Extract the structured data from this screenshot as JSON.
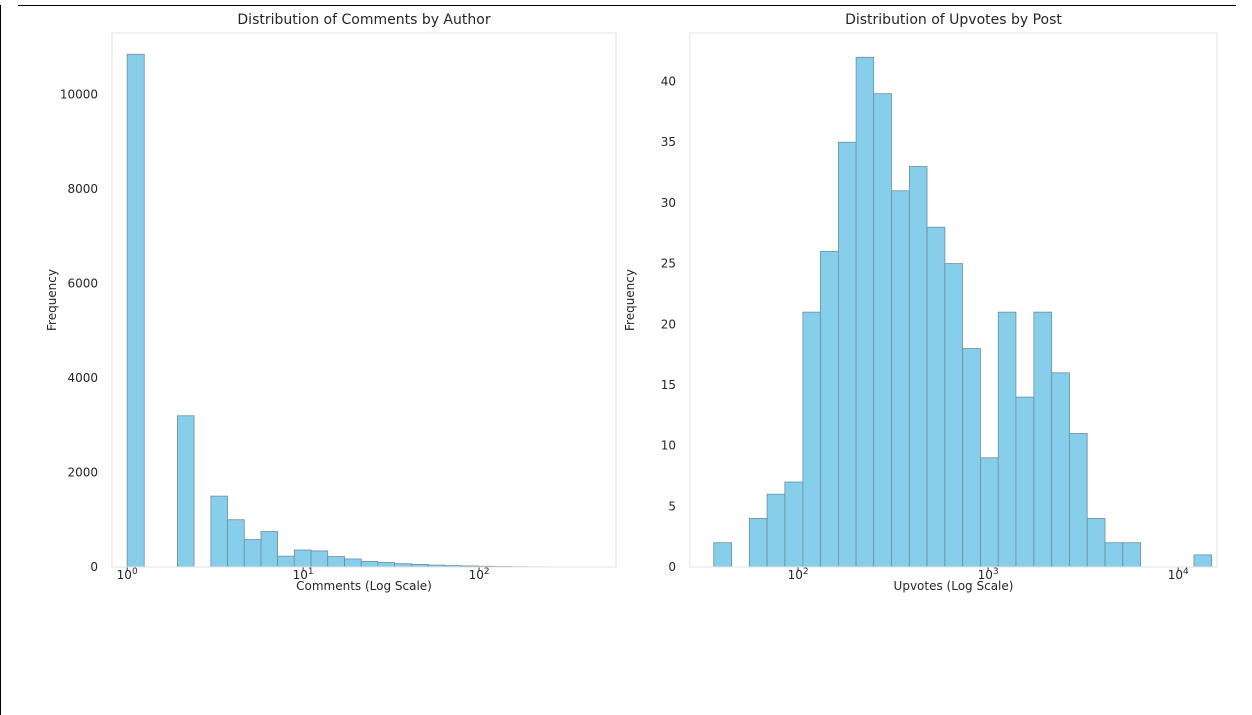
{
  "chart_data": [
    {
      "type": "bar",
      "title": "Distribution of Comments by Author",
      "xlabel": "Comments (Log Scale)",
      "ylabel": "Frequency",
      "xscale": "log",
      "xlim": [
        0.82,
        600
      ],
      "ylim": [
        0,
        11300
      ],
      "yticks": [
        0,
        2000,
        4000,
        6000,
        8000,
        10000
      ],
      "xticks": [
        {
          "value": 1,
          "base": "10",
          "exp": "0"
        },
        {
          "value": 10,
          "base": "10",
          "exp": "1"
        },
        {
          "value": 100,
          "base": "10",
          "exp": "2"
        }
      ],
      "grid": false,
      "bins": [
        {
          "x0": 1.0,
          "x1": 1.25,
          "value": 10850
        },
        {
          "x0": 1.25,
          "x1": 1.55,
          "value": 0
        },
        {
          "x0": 1.55,
          "x1": 1.93,
          "value": 0
        },
        {
          "x0": 1.93,
          "x1": 2.4,
          "value": 3200
        },
        {
          "x0": 2.4,
          "x1": 2.99,
          "value": 0
        },
        {
          "x0": 2.99,
          "x1": 3.72,
          "value": 1500
        },
        {
          "x0": 3.72,
          "x1": 4.63,
          "value": 1000
        },
        {
          "x0": 4.63,
          "x1": 5.76,
          "value": 580
        },
        {
          "x0": 5.76,
          "x1": 7.16,
          "value": 750
        },
        {
          "x0": 7.16,
          "x1": 8.91,
          "value": 230
        },
        {
          "x0": 8.91,
          "x1": 11.1,
          "value": 360
        },
        {
          "x0": 11.1,
          "x1": 13.8,
          "value": 340
        },
        {
          "x0": 13.8,
          "x1": 17.2,
          "value": 220
        },
        {
          "x0": 17.2,
          "x1": 21.4,
          "value": 170
        },
        {
          "x0": 21.4,
          "x1": 26.6,
          "value": 120
        },
        {
          "x0": 26.6,
          "x1": 33.1,
          "value": 95
        },
        {
          "x0": 33.1,
          "x1": 41.2,
          "value": 70
        },
        {
          "x0": 41.2,
          "x1": 51.3,
          "value": 55
        },
        {
          "x0": 51.3,
          "x1": 63.8,
          "value": 40
        },
        {
          "x0": 63.8,
          "x1": 79.4,
          "value": 30
        },
        {
          "x0": 79.4,
          "x1": 98.8,
          "value": 22
        },
        {
          "x0": 98.8,
          "x1": 123,
          "value": 15
        },
        {
          "x0": 123,
          "x1": 153,
          "value": 10
        },
        {
          "x0": 153,
          "x1": 190,
          "value": 6
        },
        {
          "x0": 190,
          "x1": 237,
          "value": 4
        },
        {
          "x0": 237,
          "x1": 294,
          "value": 2
        },
        {
          "x0": 294,
          "x1": 366,
          "value": 1
        },
        {
          "x0": 366,
          "x1": 456,
          "value": 1
        },
        {
          "x0": 456,
          "x1": 567,
          "value": 1
        }
      ]
    },
    {
      "type": "bar",
      "title": "Distribution of Upvotes by Post",
      "xlabel": "Upvotes (Log Scale)",
      "ylabel": "Frequency",
      "xscale": "log",
      "xlim": [
        27,
        16000
      ],
      "ylim": [
        0,
        44
      ],
      "yticks": [
        0,
        5,
        10,
        15,
        20,
        25,
        30,
        35,
        40
      ],
      "xticks": [
        {
          "value": 100,
          "base": "10",
          "exp": "2"
        },
        {
          "value": 1000,
          "base": "10",
          "exp": "3"
        },
        {
          "value": 10000,
          "base": "10",
          "exp": "4"
        }
      ],
      "grid": false,
      "bins": [
        {
          "x0": 36,
          "x1": 44.7,
          "value": 2
        },
        {
          "x0": 44.7,
          "x1": 55.4,
          "value": 0
        },
        {
          "x0": 55.4,
          "x1": 68.7,
          "value": 4
        },
        {
          "x0": 68.7,
          "x1": 85.2,
          "value": 6
        },
        {
          "x0": 85.2,
          "x1": 106,
          "value": 7
        },
        {
          "x0": 106,
          "x1": 131,
          "value": 21
        },
        {
          "x0": 131,
          "x1": 163,
          "value": 26
        },
        {
          "x0": 163,
          "x1": 202,
          "value": 35
        },
        {
          "x0": 202,
          "x1": 250,
          "value": 42
        },
        {
          "x0": 250,
          "x1": 310,
          "value": 39
        },
        {
          "x0": 310,
          "x1": 385,
          "value": 31
        },
        {
          "x0": 385,
          "x1": 477,
          "value": 33
        },
        {
          "x0": 477,
          "x1": 592,
          "value": 28
        },
        {
          "x0": 592,
          "x1": 734,
          "value": 25
        },
        {
          "x0": 734,
          "x1": 911,
          "value": 18
        },
        {
          "x0": 911,
          "x1": 1130,
          "value": 9
        },
        {
          "x0": 1130,
          "x1": 1400,
          "value": 21
        },
        {
          "x0": 1400,
          "x1": 1740,
          "value": 14
        },
        {
          "x0": 1740,
          "x1": 2160,
          "value": 21
        },
        {
          "x0": 2160,
          "x1": 2680,
          "value": 16
        },
        {
          "x0": 2680,
          "x1": 3320,
          "value": 11
        },
        {
          "x0": 3320,
          "x1": 4120,
          "value": 4
        },
        {
          "x0": 4120,
          "x1": 5110,
          "value": 2
        },
        {
          "x0": 5110,
          "x1": 6340,
          "value": 2
        },
        {
          "x0": 6340,
          "x1": 7870,
          "value": 0
        },
        {
          "x0": 7870,
          "x1": 9760,
          "value": 0
        },
        {
          "x0": 9760,
          "x1": 12100,
          "value": 0
        },
        {
          "x0": 12100,
          "x1": 15000,
          "value": 1
        }
      ]
    }
  ],
  "colors": {
    "bar_fill": "#87ceeb",
    "bar_edge": "#6b8ea3",
    "spine": "#e3e3e3",
    "text": "#262626"
  }
}
